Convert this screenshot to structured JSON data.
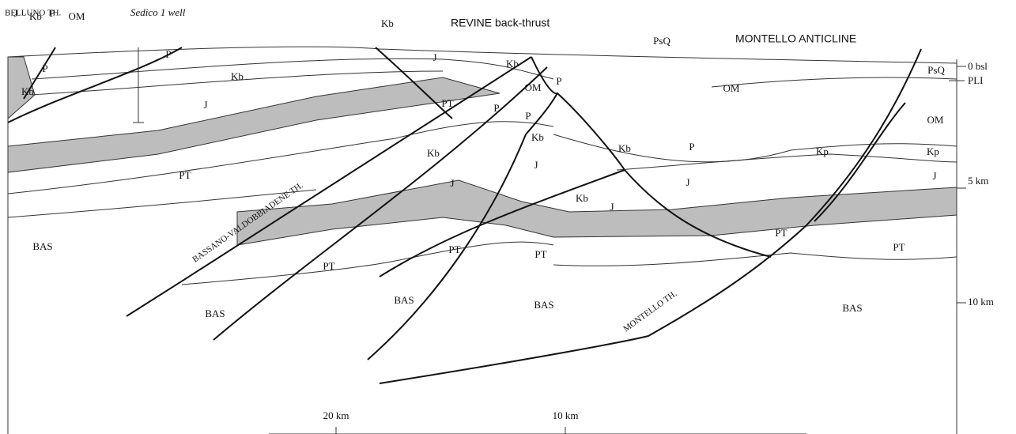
{
  "header": {
    "belluno": "BELLUNO TH.",
    "well": "Sedico 1 well",
    "revine": "REVINE back-thrust",
    "montello_anticline": "MONTELLO ANTICLINE"
  },
  "faults": {
    "bassano": "BASSANO-VALDOBBIADENE TH.",
    "montello": "MONTELLO TH."
  },
  "depth_scale": [
    "0 bsl",
    "PLI",
    "5 km",
    "10 km"
  ],
  "distance_scale": [
    "20 km",
    "10 km"
  ],
  "units": [
    "J",
    "Kb",
    "P",
    "OM",
    "P",
    "Kb",
    "P",
    "Kb",
    "J",
    "J",
    "Kb",
    "Kb",
    "OM",
    "P",
    "PT",
    "P",
    "P",
    "Kb",
    "Kb",
    "J",
    "Kb",
    "P",
    "Kp",
    "Kp",
    "J",
    "J",
    "J",
    "Kb",
    "J",
    "PT",
    "PT",
    "PT",
    "PT",
    "PT",
    "PT",
    "BAS",
    "BAS",
    "BAS",
    "BAS",
    "BAS",
    "OM",
    "OM",
    "PsQ",
    "PsQ"
  ]
}
